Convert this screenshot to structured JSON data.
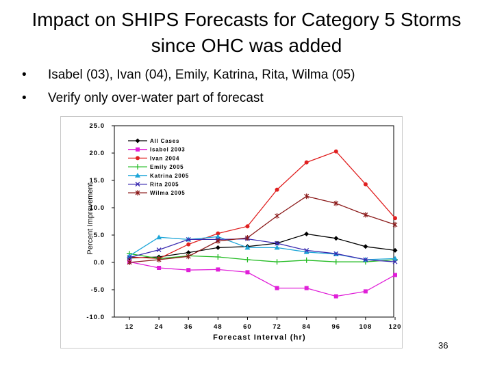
{
  "slide": {
    "title_line1": "Impact on SHIPS Forecasts for Category 5 Storms",
    "title_line2": "since OHC was added",
    "bullets": [
      "Isabel (03), Ivan (04), Emily, Katrina, Rita, Wilma (05)",
      "Verify only over-water part of forecast"
    ],
    "bullet_char": "•",
    "page_number": "36"
  },
  "chart_data": {
    "type": "line",
    "title": "",
    "xlabel": "Forecast Interval (hr)",
    "ylabel": "Percent Improvement",
    "categories": [
      12,
      24,
      36,
      48,
      60,
      72,
      84,
      96,
      108,
      120
    ],
    "ylim": [
      -10.0,
      25.0
    ],
    "yticks": [
      "25.0",
      "20.0",
      "15.0",
      "10.0",
      "5.0",
      "0.0",
      "-5.0",
      "-10.0"
    ],
    "legend_position": "top-left",
    "grid": false,
    "series": [
      {
        "name": "All Cases",
        "color": "#000000",
        "marker": "diamond",
        "values": [
          0.8,
          1.0,
          1.8,
          2.7,
          2.9,
          3.5,
          5.2,
          4.4,
          2.9,
          2.2
        ]
      },
      {
        "name": "Isabel 2003",
        "color": "#e01fd8",
        "marker": "square",
        "values": [
          0.1,
          -1.0,
          -1.4,
          -1.3,
          -1.8,
          -4.7,
          -4.7,
          -6.2,
          -5.3,
          -2.3
        ]
      },
      {
        "name": "Ivan 2004",
        "color": "#e02020",
        "marker": "circle",
        "values": [
          1.0,
          0.7,
          3.3,
          5.3,
          6.6,
          13.3,
          18.3,
          20.3,
          14.3,
          8.1
        ]
      },
      {
        "name": "Emily 2005",
        "color": "#22bb22",
        "marker": "plus",
        "values": [
          1.6,
          0.7,
          1.2,
          1.0,
          0.5,
          0.1,
          0.4,
          0.1,
          0.1,
          0.5
        ]
      },
      {
        "name": "Katrina 2005",
        "color": "#1ea6d8",
        "marker": "triangle",
        "values": [
          1.2,
          4.6,
          4.2,
          4.7,
          2.7,
          2.7,
          1.9,
          1.5,
          0.5,
          0.7
        ]
      },
      {
        "name": "Rita 2005",
        "color": "#3a2bb0",
        "marker": "x",
        "values": [
          0.9,
          2.3,
          4.2,
          4.2,
          4.3,
          3.5,
          2.2,
          1.6,
          0.5,
          0.1
        ]
      },
      {
        "name": "Wilma 2005",
        "color": "#8b1a1a",
        "marker": "star",
        "values": [
          0.0,
          0.5,
          1.1,
          3.9,
          4.5,
          8.5,
          12.1,
          10.8,
          8.7,
          6.9
        ]
      }
    ]
  }
}
